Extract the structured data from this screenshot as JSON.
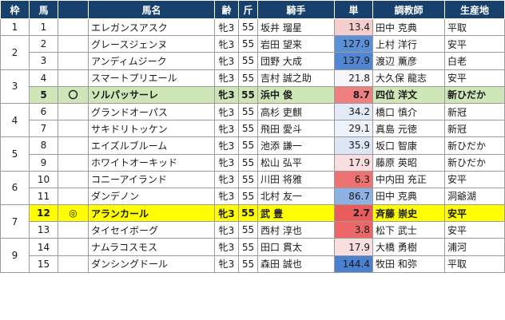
{
  "headers": [
    "枠",
    "馬",
    "",
    "馬名",
    "齢",
    "斤",
    "騎手",
    "単",
    "調教師",
    "生産地"
  ],
  "frames": [
    {
      "label": "1",
      "span": 1
    },
    {
      "label": "2",
      "span": 2
    },
    {
      "label": "3",
      "span": 2
    },
    {
      "label": "4",
      "span": 2
    },
    {
      "label": "5",
      "span": 2
    },
    {
      "label": "6",
      "span": 2
    },
    {
      "label": "7",
      "span": 2
    },
    {
      "label": "9",
      "span": 2
    }
  ],
  "rows": [
    {
      "num": "1",
      "mark": "",
      "name": "エレガンスアスク",
      "age": "牝3",
      "weight": "55",
      "jockey": "坂井 瑠星",
      "odds": "13.4",
      "trainer": "田中 克典",
      "origin": "平取",
      "odds_color": "#f5cfcf",
      "hl": ""
    },
    {
      "num": "2",
      "mark": "",
      "name": "グレースジェンヌ",
      "age": "牝3",
      "weight": "55",
      "jockey": "岩田 望来",
      "odds": "127.9",
      "trainer": "上村 洋行",
      "origin": "安平",
      "odds_color": "#5b8fd6",
      "hl": ""
    },
    {
      "num": "3",
      "mark": "",
      "name": "アンディムジーク",
      "age": "牝3",
      "weight": "55",
      "jockey": "団野 大成",
      "odds": "137.9",
      "trainer": "渡辺 薫彦",
      "origin": "白老",
      "odds_color": "#5286d2",
      "hl": ""
    },
    {
      "num": "4",
      "mark": "",
      "name": "スマートプリエール",
      "age": "牝3",
      "weight": "55",
      "jockey": "吉村 誠之助",
      "odds": "21.8",
      "trainer": "大久保 龍志",
      "origin": "安平",
      "odds_color": "#f6f6fb",
      "hl": ""
    },
    {
      "num": "5",
      "mark": "〇",
      "name": "ソルパッサーレ",
      "age": "牝3",
      "weight": "55",
      "jockey": "浜中 俊",
      "odds": "8.7",
      "trainer": "四位 洋文",
      "origin": "新ひだか",
      "odds_color": "#f08080",
      "hl": "green"
    },
    {
      "num": "6",
      "mark": "",
      "name": "グランドオーパス",
      "age": "牝3",
      "weight": "55",
      "jockey": "高杉 吏麒",
      "odds": "34.2",
      "trainer": "橋口 慎介",
      "origin": "新冠",
      "odds_color": "#e2eaf7",
      "hl": ""
    },
    {
      "num": "7",
      "mark": "",
      "name": "サキドリトッケン",
      "age": "牝3",
      "weight": "55",
      "jockey": "飛田 愛斗",
      "odds": "29.1",
      "trainer": "真島 元徳",
      "origin": "新冠",
      "odds_color": "#eef2fa",
      "hl": ""
    },
    {
      "num": "8",
      "mark": "",
      "name": "エイズルブルーム",
      "age": "牝3",
      "weight": "55",
      "jockey": "池添 謙一",
      "odds": "35.9",
      "trainer": "坂口 智康",
      "origin": "新ひだか",
      "odds_color": "#dde6f5",
      "hl": ""
    },
    {
      "num": "9",
      "mark": "",
      "name": "ホワイトオーキッド",
      "age": "牝3",
      "weight": "55",
      "jockey": "松山 弘平",
      "odds": "17.9",
      "trainer": "藤原 英昭",
      "origin": "新ひだか",
      "odds_color": "#f8dede",
      "hl": ""
    },
    {
      "num": "10",
      "mark": "",
      "name": "コニーアイランド",
      "age": "牝3",
      "weight": "55",
      "jockey": "川田 将雅",
      "odds": "6.3",
      "trainer": "中内田 充正",
      "origin": "安平",
      "odds_color": "#ee7272",
      "hl": ""
    },
    {
      "num": "11",
      "mark": "",
      "name": "ダンデノン",
      "age": "牝3",
      "weight": "55",
      "jockey": "北村 友一",
      "odds": "86.7",
      "trainer": "田中 克典",
      "origin": "洞爺湖",
      "odds_color": "#8fb0e2",
      "hl": ""
    },
    {
      "num": "12",
      "mark": "◎",
      "name": "アランカール",
      "age": "牝3",
      "weight": "55",
      "jockey": "武 豊",
      "odds": "2.7",
      "trainer": "斉藤 崇史",
      "origin": "安平",
      "odds_color": "#e95c5c",
      "hl": "yellow"
    },
    {
      "num": "13",
      "mark": "",
      "name": "タイセイボーグ",
      "age": "牝3",
      "weight": "55",
      "jockey": "西村 淳也",
      "odds": "3.8",
      "trainer": "松下 武士",
      "origin": "安平",
      "odds_color": "#ec6767",
      "hl": ""
    },
    {
      "num": "14",
      "mark": "",
      "name": "ナムラコスモス",
      "age": "牝3",
      "weight": "55",
      "jockey": "田口 貫太",
      "odds": "17.9",
      "trainer": "大橋 勇樹",
      "origin": "浦河",
      "odds_color": "#f8dede",
      "hl": ""
    },
    {
      "num": "15",
      "mark": "",
      "name": "ダンシングドール",
      "age": "牝3",
      "weight": "55",
      "jockey": "森田 誠也",
      "odds": "144.4",
      "trainer": "牧田 和弥",
      "origin": "平取",
      "odds_color": "#4a80cf",
      "hl": ""
    }
  ]
}
